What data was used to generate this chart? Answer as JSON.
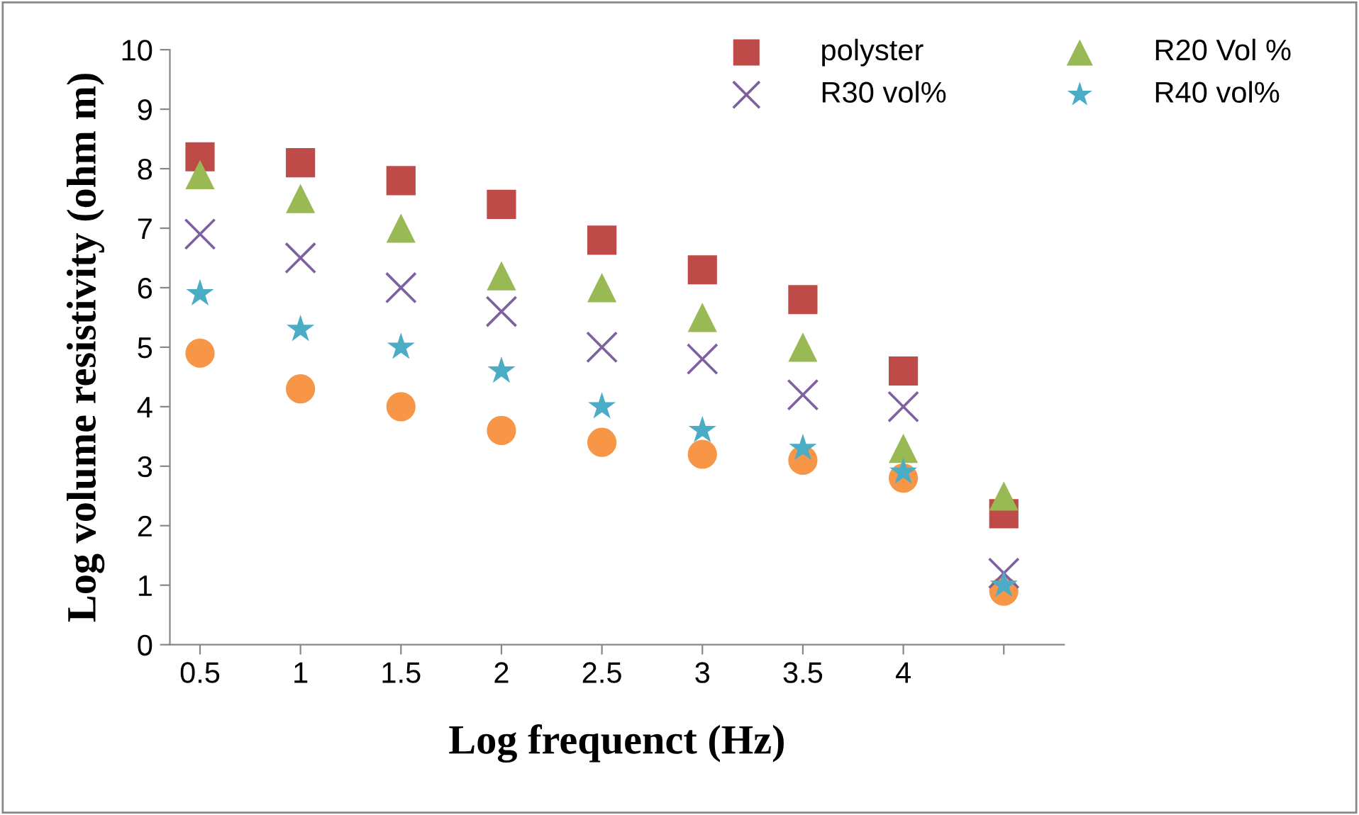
{
  "chart_data": {
    "type": "scatter",
    "xlabel": "Log frequenct (Hz)",
    "ylabel": "Log volume resistivity (ohm m)",
    "categories": [
      "0.5",
      "1",
      "1.5",
      "2",
      "2.5",
      "3",
      "3.5",
      "4",
      null
    ],
    "ylim": [
      0,
      10
    ],
    "yticks": [
      0,
      1,
      2,
      3,
      4,
      5,
      6,
      7,
      8,
      9,
      10
    ],
    "grid": false,
    "legend": "top right",
    "series": [
      {
        "name": "polyster",
        "color": "#be4b48",
        "marker": "square",
        "values": [
          8.2,
          8.1,
          7.8,
          7.4,
          6.8,
          6.3,
          5.8,
          4.6,
          2.2
        ]
      },
      {
        "name": "R20 Vol %",
        "color": "#98b954",
        "marker": "triangle",
        "values": [
          7.9,
          7.5,
          7.0,
          6.2,
          6.0,
          5.5,
          5.0,
          3.3,
          2.5
        ]
      },
      {
        "name": "R30 vol%",
        "color": "#7d60a0",
        "marker": "cross",
        "values": [
          6.9,
          6.5,
          6.0,
          5.6,
          5.0,
          4.8,
          4.2,
          4.0,
          1.2
        ]
      },
      {
        "name": "R40 vol%",
        "color": "#4bacc6",
        "marker": "star",
        "values": [
          5.9,
          5.3,
          5.0,
          4.6,
          4.0,
          3.6,
          3.3,
          2.9,
          1.0
        ]
      },
      {
        "color": "#f79646",
        "marker": "circle",
        "values": [
          4.9,
          4.3,
          4.0,
          3.6,
          3.4,
          3.2,
          3.1,
          2.8,
          0.9
        ]
      }
    ]
  }
}
